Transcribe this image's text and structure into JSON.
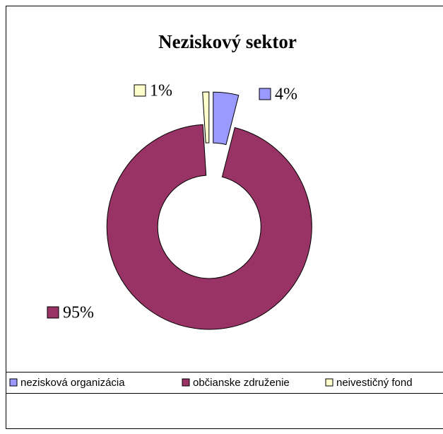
{
  "chart_data": {
    "type": "donut",
    "title": "Neziskový sektor",
    "categories": [
      "nezisková organizácia",
      "občianske združenie",
      "neivestičný fond"
    ],
    "values": [
      4,
      95,
      1
    ],
    "value_labels": [
      "4%",
      "95%",
      "1%"
    ],
    "colors": [
      "#9999ff",
      "#993366",
      "#ffffcc"
    ],
    "legend": "bottom"
  }
}
